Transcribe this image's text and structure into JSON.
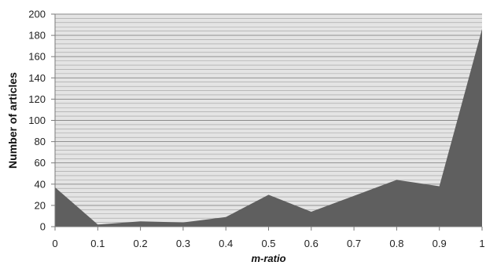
{
  "chart_data": {
    "type": "area",
    "xlabel": "m-ratio",
    "ylabel": "Number of articles",
    "x": [
      0,
      0.1,
      0.2,
      0.3,
      0.4,
      0.5,
      0.6,
      0.7,
      0.8,
      0.9,
      1
    ],
    "x_tick_labels": [
      "0",
      "0.1",
      "0.2",
      "0.3",
      "0.4",
      "0.5",
      "0.6",
      "0.7",
      "0.8",
      "0.9",
      "1"
    ],
    "y_tick_labels": [
      "0",
      "20",
      "40",
      "60",
      "80",
      "100",
      "120",
      "140",
      "160",
      "180",
      "200"
    ],
    "ylim": [
      0,
      200
    ],
    "xlim": [
      0,
      1
    ],
    "grid": true,
    "series": [
      {
        "values": [
          37,
          2,
          5,
          4,
          9,
          30,
          14,
          29,
          44,
          38,
          186
        ]
      }
    ],
    "colors": {
      "area": "#5f5f5f",
      "plot_background": "#e4e4e4",
      "gridline": "#9e9e9e"
    }
  }
}
